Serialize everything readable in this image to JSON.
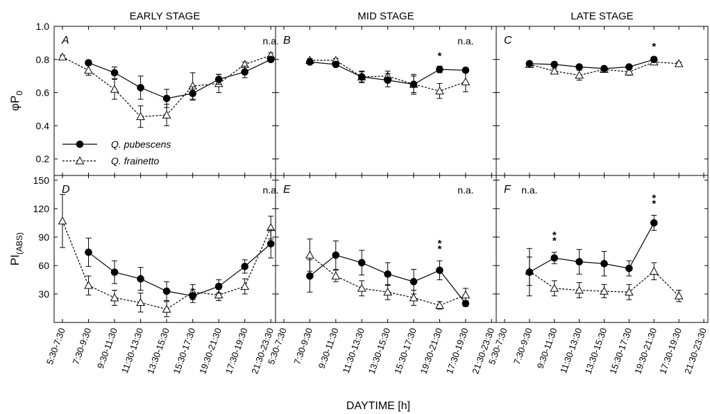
{
  "chart_data": {
    "type": "line",
    "xlabel": "DAYTIME [h]",
    "x_categories": [
      "5:30-7:30",
      "7:30-9:30",
      "9:30-11:30",
      "11:30-13:30",
      "13:30-15:30",
      "15:30-17:30",
      "19:30-21:30",
      "17:30-19:30",
      "21:30-23:30"
    ],
    "columns": [
      "EARLY STAGE",
      "MID STAGE",
      "LATE STAGE"
    ],
    "rows": [
      {
        "ylabel": "φP0",
        "ylabel_main": "φP",
        "ylabel_sub": "0",
        "ylim": [
          0.1,
          1.0
        ],
        "yticks": [
          0.2,
          0.4,
          0.6,
          0.8,
          1.0
        ],
        "ytick_labels": [
          "0.2",
          "0.4",
          "0.6",
          "0.8",
          "1.0"
        ]
      },
      {
        "ylabel": "PI(ABS)",
        "ylabel_main": "PI",
        "ylabel_sub": "(ABS)",
        "ylim": [
          0,
          155
        ],
        "yticks": [
          30,
          60,
          90,
          120,
          150
        ],
        "ytick_labels": [
          "30",
          "60",
          "90",
          "120",
          "150"
        ]
      }
    ],
    "legend": {
      "position": "lower-left of panel A",
      "entries": [
        {
          "name": "Q. pubescens",
          "marker": "filled-circle",
          "line": "solid"
        },
        {
          "name": "Q. frainetto",
          "marker": "open-triangle",
          "line": "dashed"
        }
      ]
    },
    "panels": [
      {
        "letter": "A",
        "row": 0,
        "col": 0,
        "series": [
          {
            "name": "Q. pubescens",
            "values": [
              null,
              0.78,
              0.72,
              0.63,
              0.565,
              0.595,
              0.68,
              0.725,
              0.8
            ],
            "errors": [
              null,
              0.015,
              0.035,
              0.07,
              0.055,
              0.04,
              0.03,
              0.035,
              0.015
            ]
          },
          {
            "name": "Q. frainetto",
            "values": [
              0.815,
              0.735,
              0.62,
              0.455,
              0.465,
              0.64,
              0.655,
              0.77,
              0.825
            ],
            "errors": [
              0.01,
              0.03,
              0.06,
              0.065,
              0.065,
              0.08,
              0.055,
              0.015,
              0.015
            ]
          }
        ],
        "annotations": [
          {
            "text": "n.a.",
            "x_index": 8
          }
        ]
      },
      {
        "letter": "B",
        "row": 0,
        "col": 1,
        "series": [
          {
            "name": "Q. pubescens",
            "values": [
              null,
              0.785,
              0.77,
              0.695,
              0.675,
              0.65,
              0.74,
              0.735,
              null
            ],
            "errors": [
              null,
              0.01,
              0.01,
              0.035,
              0.04,
              0.05,
              0.02,
              0.01,
              null
            ]
          },
          {
            "name": "Q. frainetto",
            "values": [
              null,
              0.795,
              0.795,
              0.695,
              0.7,
              0.65,
              0.61,
              0.665,
              null
            ],
            "errors": [
              null,
              0.01,
              0.01,
              0.03,
              0.03,
              0.06,
              0.045,
              0.06,
              null
            ]
          }
        ],
        "annotations": [
          {
            "text": "*",
            "x_index": 6
          },
          {
            "text": "n.a.",
            "x_index": 7
          }
        ]
      },
      {
        "letter": "C",
        "row": 0,
        "col": 2,
        "series": [
          {
            "name": "Q. pubescens",
            "values": [
              null,
              0.775,
              0.77,
              0.755,
              0.745,
              0.755,
              0.8,
              null,
              null
            ],
            "errors": [
              null,
              0.01,
              0.01,
              0.01,
              0.01,
              0.01,
              0.015,
              null,
              null
            ]
          },
          {
            "name": "Q. frainetto",
            "values": [
              null,
              0.77,
              0.73,
              0.705,
              0.74,
              0.725,
              0.785,
              0.775,
              null
            ],
            "errors": [
              null,
              0.01,
              0.015,
              0.03,
              0.015,
              0.02,
              0.01,
              0.01,
              null
            ]
          }
        ],
        "annotations": [
          {
            "text": "*",
            "x_index": 6
          }
        ]
      },
      {
        "letter": "D",
        "row": 1,
        "col": 0,
        "series": [
          {
            "name": "Q. pubescens",
            "values": [
              null,
              74,
              53,
              46,
              33,
              28,
              38,
              59,
              83
            ],
            "errors": [
              null,
              15,
              12,
              12,
              10,
              7,
              7,
              7,
              15
            ]
          },
          {
            "name": "Q. frainetto",
            "values": [
              107,
              39,
              26,
              21,
              14,
              32,
              29,
              38,
              100
            ],
            "errors": [
              28,
              10,
              8,
              10,
              8,
              8,
              6,
              8,
              12
            ]
          }
        ],
        "annotations": [
          {
            "text": "n.a.",
            "x_index": 8
          }
        ]
      },
      {
        "letter": "E",
        "row": 1,
        "col": 1,
        "series": [
          {
            "name": "Q. pubescens",
            "values": [
              null,
              49,
              71,
              63,
              51,
              43,
              55,
              20,
              null
            ],
            "errors": [
              null,
              17,
              15,
              13,
              12,
              13,
              10,
              3,
              null
            ]
          },
          {
            "name": "Q. frainetto",
            "values": [
              null,
              71,
              49,
              36,
              32,
              26,
              18,
              29,
              null
            ],
            "errors": [
              null,
              17,
              6,
              8,
              8,
              8,
              4,
              7,
              null
            ]
          }
        ],
        "annotations": [
          {
            "text": "**",
            "x_index": 6
          },
          {
            "text": "n.a.",
            "x_index": 7
          }
        ]
      },
      {
        "letter": "F",
        "row": 1,
        "col": 2,
        "series": [
          {
            "name": "Q. pubescens",
            "values": [
              null,
              53,
              68,
              64,
              62,
              57,
              105,
              null,
              null
            ],
            "errors": [
              null,
              25,
              6,
              13,
              13,
              8,
              8,
              null,
              null
            ]
          },
          {
            "name": "Q. frainetto",
            "values": [
              null,
              54,
              36,
              34,
              33,
              32,
              54,
              28,
              null
            ],
            "errors": [
              null,
              15,
              8,
              8,
              7,
              8,
              9,
              6,
              null
            ]
          }
        ],
        "annotations": [
          {
            "text": "n.a.",
            "x_index": 1
          },
          {
            "text": "**",
            "x_index": 2
          },
          {
            "text": "**",
            "x_index": 6
          }
        ]
      }
    ]
  }
}
